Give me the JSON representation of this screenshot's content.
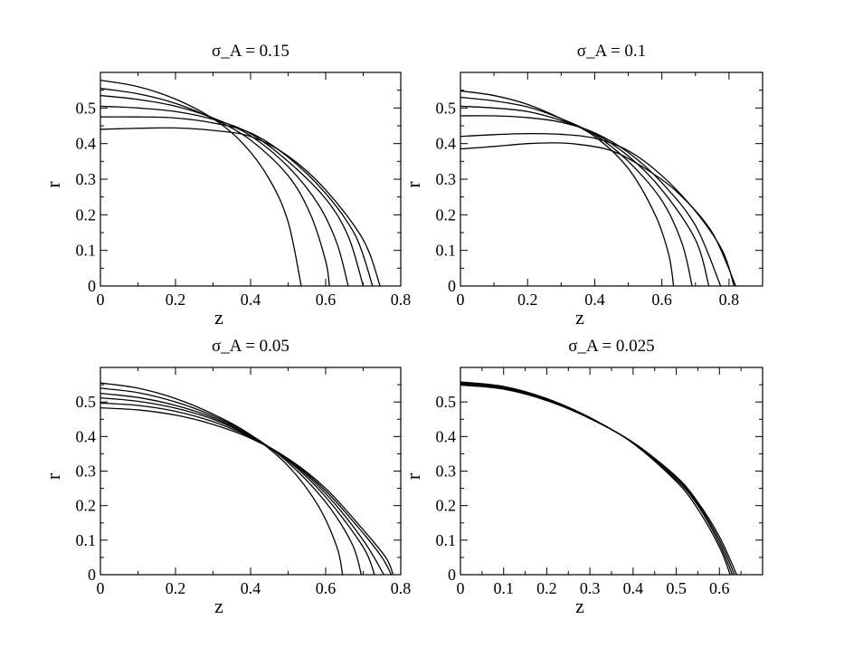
{
  "chart_data": [
    {
      "type": "line",
      "title": "σ_A = 0.15",
      "xlabel": "z",
      "ylabel": "r",
      "xlim": [
        0,
        0.8
      ],
      "ylim": [
        0,
        0.6
      ],
      "xticks": [
        0,
        0.2,
        0.4,
        0.6,
        0.8
      ],
      "xticklabels": [
        "0",
        "0.2",
        "0.4",
        "0.6",
        "0.8"
      ],
      "yticks": [
        0,
        0.1,
        0.2,
        0.3,
        0.4,
        0.5
      ],
      "yticklabels": [
        "0",
        "0.1",
        "0.2",
        "0.3",
        "0.4",
        "0.5"
      ],
      "legend": "none",
      "grid": false,
      "series": [
        {
          "r0": 0.578,
          "zmax": 0.535,
          "x": [
            0,
            0.1,
            0.2,
            0.3,
            0.38,
            0.45,
            0.5,
            0.535
          ],
          "y": [
            0.578,
            0.56,
            0.525,
            0.47,
            0.4,
            0.3,
            0.18,
            0
          ]
        },
        {
          "r0": 0.555,
          "zmax": 0.61,
          "x": [
            0,
            0.1,
            0.2,
            0.3,
            0.4,
            0.5,
            0.56,
            0.6,
            0.61
          ],
          "y": [
            0.555,
            0.54,
            0.513,
            0.47,
            0.41,
            0.31,
            0.2,
            0.07,
            0
          ]
        },
        {
          "r0": 0.535,
          "zmax": 0.66,
          "x": [
            0,
            0.1,
            0.2,
            0.3,
            0.4,
            0.5,
            0.58,
            0.63,
            0.66
          ],
          "y": [
            0.535,
            0.524,
            0.505,
            0.472,
            0.422,
            0.335,
            0.23,
            0.12,
            0
          ]
        },
        {
          "r0": 0.505,
          "zmax": 0.7,
          "x": [
            0,
            0.1,
            0.2,
            0.3,
            0.4,
            0.5,
            0.6,
            0.66,
            0.7
          ],
          "y": [
            0.505,
            0.5,
            0.49,
            0.468,
            0.428,
            0.35,
            0.245,
            0.14,
            0
          ]
        },
        {
          "r0": 0.475,
          "zmax": 0.725,
          "x": [
            0,
            0.1,
            0.2,
            0.3,
            0.4,
            0.5,
            0.6,
            0.68,
            0.725
          ],
          "y": [
            0.475,
            0.475,
            0.472,
            0.458,
            0.43,
            0.362,
            0.26,
            0.14,
            0
          ]
        },
        {
          "r0": 0.44,
          "zmax": 0.745,
          "x": [
            0,
            0.1,
            0.2,
            0.3,
            0.4,
            0.5,
            0.6,
            0.7,
            0.745
          ],
          "y": [
            0.44,
            0.443,
            0.444,
            0.437,
            0.42,
            0.365,
            0.27,
            0.13,
            0
          ]
        }
      ]
    },
    {
      "type": "line",
      "title": "σ_A = 0.1",
      "xlabel": "z",
      "ylabel": "r",
      "xlim": [
        0,
        0.9
      ],
      "ylim": [
        0,
        0.6
      ],
      "xticks": [
        0,
        0.2,
        0.4,
        0.6,
        0.8
      ],
      "xticklabels": [
        "0",
        "0.2",
        "0.4",
        "0.6",
        "0.8"
      ],
      "yticks": [
        0,
        0.1,
        0.2,
        0.3,
        0.4,
        0.5
      ],
      "yticklabels": [
        "0",
        "0.1",
        "0.2",
        "0.3",
        "0.4",
        "0.5"
      ],
      "legend": "none",
      "grid": false,
      "series": [
        {
          "r0": 0.548,
          "zmax": 0.635,
          "x": [
            0,
            0.1,
            0.2,
            0.3,
            0.4,
            0.5,
            0.58,
            0.62,
            0.635
          ],
          "y": [
            0.548,
            0.535,
            0.51,
            0.47,
            0.42,
            0.33,
            0.2,
            0.09,
            0
          ]
        },
        {
          "r0": 0.53,
          "zmax": 0.69,
          "x": [
            0,
            0.1,
            0.2,
            0.3,
            0.4,
            0.5,
            0.6,
            0.66,
            0.69
          ],
          "y": [
            0.53,
            0.52,
            0.503,
            0.47,
            0.425,
            0.35,
            0.24,
            0.12,
            0
          ]
        },
        {
          "r0": 0.505,
          "zmax": 0.74,
          "x": [
            0,
            0.1,
            0.2,
            0.3,
            0.4,
            0.5,
            0.6,
            0.7,
            0.74
          ],
          "y": [
            0.505,
            0.5,
            0.49,
            0.465,
            0.428,
            0.365,
            0.27,
            0.13,
            0
          ]
        },
        {
          "r0": 0.478,
          "zmax": 0.775,
          "x": [
            0,
            0.1,
            0.2,
            0.3,
            0.4,
            0.5,
            0.6,
            0.7,
            0.775
          ],
          "y": [
            0.478,
            0.478,
            0.473,
            0.46,
            0.43,
            0.375,
            0.29,
            0.17,
            0
          ]
        },
        {
          "r0": 0.42,
          "zmax": 0.815,
          "x": [
            0,
            0.1,
            0.2,
            0.3,
            0.4,
            0.5,
            0.6,
            0.7,
            0.78,
            0.815
          ],
          "y": [
            0.42,
            0.425,
            0.428,
            0.426,
            0.415,
            0.38,
            0.31,
            0.21,
            0.1,
            0
          ]
        },
        {
          "r0": 0.385,
          "zmax": 0.82,
          "x": [
            0,
            0.1,
            0.2,
            0.28,
            0.35,
            0.45,
            0.55,
            0.65,
            0.75,
            0.82
          ],
          "y": [
            0.385,
            0.392,
            0.4,
            0.402,
            0.398,
            0.38,
            0.33,
            0.26,
            0.15,
            0
          ]
        }
      ]
    },
    {
      "type": "line",
      "title": "σ_A = 0.05",
      "xlabel": "z",
      "ylabel": "r",
      "xlim": [
        0,
        0.8
      ],
      "ylim": [
        0,
        0.6
      ],
      "xticks": [
        0,
        0.2,
        0.4,
        0.6,
        0.8
      ],
      "xticklabels": [
        "0",
        "0.2",
        "0.4",
        "0.6",
        "0.8"
      ],
      "yticks": [
        0,
        0.1,
        0.2,
        0.3,
        0.4,
        0.5
      ],
      "yticklabels": [
        "0",
        "0.1",
        "0.2",
        "0.3",
        "0.4",
        "0.5"
      ],
      "legend": "none",
      "grid": false,
      "series": [
        {
          "r0": 0.555,
          "zmax": 0.645,
          "x": [
            0,
            0.1,
            0.2,
            0.3,
            0.4,
            0.5,
            0.58,
            0.63,
            0.645
          ],
          "y": [
            0.555,
            0.54,
            0.51,
            0.465,
            0.405,
            0.315,
            0.2,
            0.08,
            0
          ]
        },
        {
          "r0": 0.54,
          "zmax": 0.695,
          "x": [
            0,
            0.1,
            0.2,
            0.3,
            0.4,
            0.5,
            0.6,
            0.67,
            0.695
          ],
          "y": [
            0.54,
            0.527,
            0.5,
            0.46,
            0.405,
            0.325,
            0.21,
            0.09,
            0
          ]
        },
        {
          "r0": 0.525,
          "zmax": 0.73,
          "x": [
            0,
            0.1,
            0.2,
            0.3,
            0.4,
            0.5,
            0.6,
            0.7,
            0.73
          ],
          "y": [
            0.525,
            0.513,
            0.49,
            0.455,
            0.402,
            0.33,
            0.225,
            0.08,
            0
          ]
        },
        {
          "r0": 0.512,
          "zmax": 0.755,
          "x": [
            0,
            0.1,
            0.2,
            0.3,
            0.4,
            0.5,
            0.6,
            0.7,
            0.755
          ],
          "y": [
            0.512,
            0.502,
            0.482,
            0.45,
            0.4,
            0.333,
            0.235,
            0.1,
            0
          ]
        },
        {
          "r0": 0.497,
          "zmax": 0.775,
          "x": [
            0,
            0.1,
            0.2,
            0.3,
            0.4,
            0.5,
            0.6,
            0.7,
            0.75,
            0.775
          ],
          "y": [
            0.497,
            0.49,
            0.473,
            0.443,
            0.398,
            0.335,
            0.243,
            0.12,
            0.05,
            0
          ]
        },
        {
          "r0": 0.483,
          "zmax": 0.78,
          "x": [
            0,
            0.1,
            0.2,
            0.3,
            0.4,
            0.5,
            0.6,
            0.7,
            0.76,
            0.78
          ],
          "y": [
            0.483,
            0.477,
            0.462,
            0.435,
            0.395,
            0.336,
            0.25,
            0.13,
            0.05,
            0
          ]
        }
      ]
    },
    {
      "type": "line",
      "title": "σ_A = 0.025",
      "xlabel": "z",
      "ylabel": "r",
      "xlim": [
        0,
        0.7
      ],
      "ylim": [
        0,
        0.6
      ],
      "xticks": [
        0,
        0.1,
        0.2,
        0.3,
        0.4,
        0.5,
        0.6
      ],
      "xticklabels": [
        "0",
        "0.1",
        "0.2",
        "0.3",
        "0.4",
        "0.5",
        "0.6"
      ],
      "yticks": [
        0,
        0.1,
        0.2,
        0.3,
        0.4,
        0.5
      ],
      "yticklabels": [
        "0",
        "0.1",
        "0.2",
        "0.3",
        "0.4",
        "0.5"
      ],
      "legend": "none",
      "grid": false,
      "series": [
        {
          "r0": 0.558,
          "zmax": 0.625,
          "x": [
            0,
            0.1,
            0.2,
            0.3,
            0.4,
            0.5,
            0.55,
            0.6,
            0.625
          ],
          "y": [
            0.558,
            0.545,
            0.51,
            0.455,
            0.38,
            0.27,
            0.19,
            0.08,
            0
          ]
        },
        {
          "r0": 0.555,
          "zmax": 0.63,
          "x": [
            0,
            0.1,
            0.2,
            0.3,
            0.4,
            0.5,
            0.55,
            0.6,
            0.63
          ],
          "y": [
            0.555,
            0.543,
            0.508,
            0.454,
            0.381,
            0.275,
            0.2,
            0.09,
            0
          ]
        },
        {
          "r0": 0.552,
          "zmax": 0.635,
          "x": [
            0,
            0.1,
            0.2,
            0.3,
            0.4,
            0.5,
            0.55,
            0.6,
            0.635
          ],
          "y": [
            0.552,
            0.54,
            0.506,
            0.453,
            0.382,
            0.28,
            0.205,
            0.1,
            0
          ]
        },
        {
          "r0": 0.549,
          "zmax": 0.64,
          "x": [
            0,
            0.1,
            0.2,
            0.3,
            0.4,
            0.5,
            0.55,
            0.6,
            0.64
          ],
          "y": [
            0.549,
            0.537,
            0.504,
            0.452,
            0.383,
            0.284,
            0.21,
            0.11,
            0
          ]
        }
      ]
    }
  ]
}
